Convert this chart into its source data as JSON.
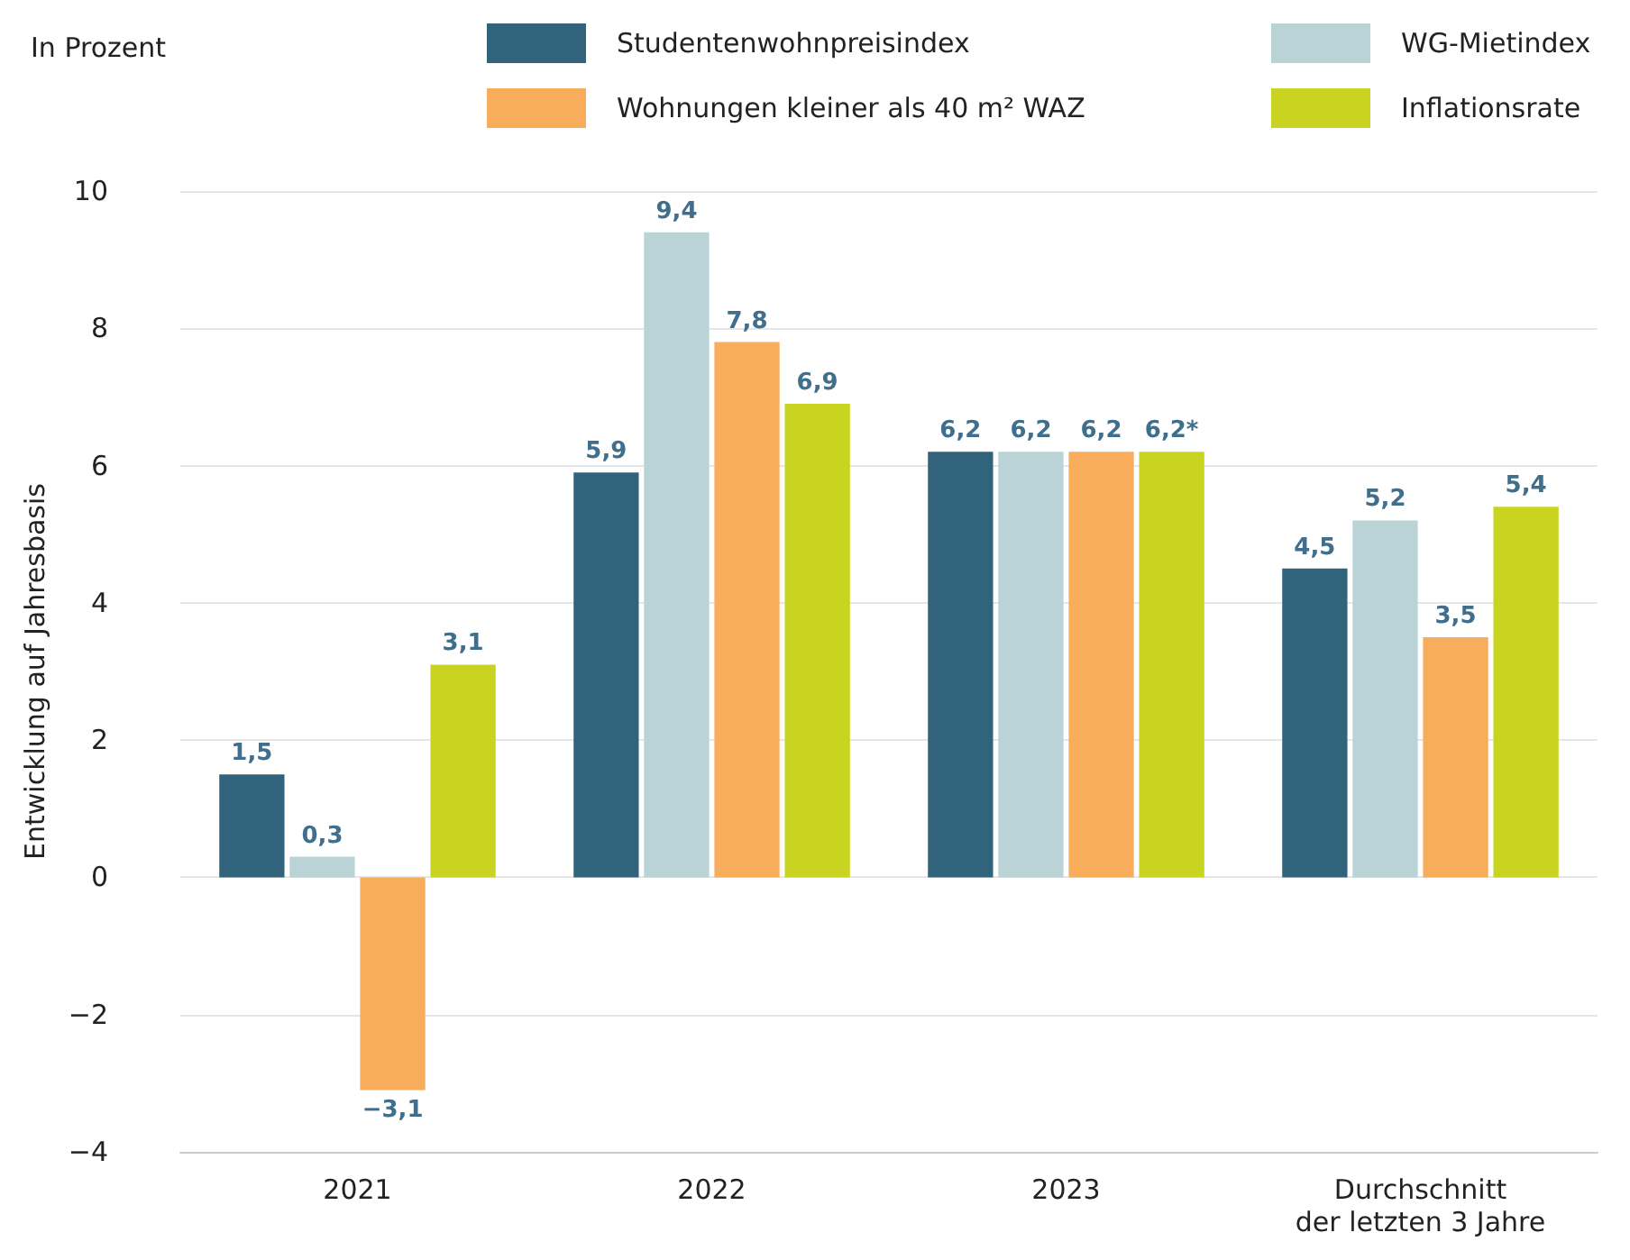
{
  "chart_data": {
    "type": "bar",
    "title": "In Prozent",
    "ylabel": "Entwicklung auf Jahresbasis",
    "categories": [
      "2021",
      "2022",
      "2023",
      "Durchschnitt\nder letzten 3 Jahre"
    ],
    "series": [
      {
        "name": "Studentenwohnpreisindex",
        "color": "#31637c",
        "values": [
          1.5,
          5.9,
          6.2,
          4.5
        ],
        "value_labels": [
          "1,5",
          "5,9",
          "6,2",
          "4,5"
        ]
      },
      {
        "name": "WG-Mietindex",
        "color": "#b9d3d6",
        "values": [
          0.3,
          9.4,
          6.2,
          5.2
        ],
        "value_labels": [
          "0,3",
          "9,4",
          "6,2",
          "5,2"
        ]
      },
      {
        "name": "Wohnungen kleiner als 40 m² WAZ",
        "color": "#f8ad5c",
        "values": [
          -3.1,
          7.8,
          6.2,
          3.5
        ],
        "value_labels": [
          "−3,1",
          "7,8",
          "6,2",
          "3,5"
        ]
      },
      {
        "name": "Inflationsrate",
        "color": "#c8d420",
        "values": [
          3.1,
          6.9,
          6.2,
          5.4
        ],
        "value_labels": [
          "3,1",
          "6,9",
          "6,2*",
          "5,4"
        ]
      }
    ],
    "ylim": [
      -4,
      10
    ],
    "yticks": [
      {
        "value": -4,
        "label": "−4"
      },
      {
        "value": -2,
        "label": "−2"
      },
      0,
      2,
      4,
      6,
      8,
      10
    ],
    "grid": "y",
    "legend": "top"
  }
}
